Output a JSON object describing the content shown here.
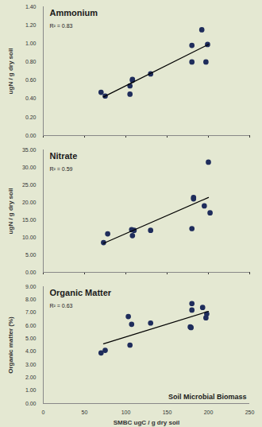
{
  "chart_data": [
    {
      "type": "scatter",
      "title": "Ammonium",
      "annotations": [
        "R² = 0.83"
      ],
      "y_label": "ugN / g dry soil",
      "xlim": [
        0,
        250
      ],
      "xticks": [
        0,
        50,
        100,
        150,
        200,
        250
      ],
      "ylim": [
        0,
        1.4
      ],
      "yticks": [
        {
          "value": 0,
          "label": "0.00"
        },
        {
          "value": 0.2,
          "label": "0.20"
        },
        {
          "value": 0.4,
          "label": "0.40"
        },
        {
          "value": 0.6,
          "label": "0.60"
        },
        {
          "value": 0.8,
          "label": "0.80"
        },
        {
          "value": 1.0,
          "label": "1.00"
        },
        {
          "value": 1.2,
          "label": "1.20"
        },
        {
          "value": 1.4,
          "label": "1.40"
        }
      ],
      "tick_labels": "y",
      "series": [
        {
          "type": "scatter",
          "color": "#1f2d5c",
          "marker": "circle",
          "x": [
            70,
            75,
            105,
            105,
            108,
            108,
            130,
            180,
            180,
            192,
            197,
            199
          ],
          "values": [
            0.47,
            0.43,
            0.54,
            0.45,
            0.6,
            0.61,
            0.67,
            0.8,
            0.98,
            1.15,
            0.8,
            0.99
          ]
        },
        {
          "type": "line",
          "color": "#000000",
          "line_style": "solid",
          "x": [
            73,
            200
          ],
          "values": [
            0.42,
            0.99
          ]
        }
      ]
    },
    {
      "type": "scatter",
      "title": "Nitrate",
      "annotations": [
        "R² = 0.59"
      ],
      "y_label": "ugN / g dry soil",
      "xlim": [
        0,
        250
      ],
      "xticks": [
        0,
        50,
        100,
        150,
        200,
        250
      ],
      "ylim": [
        0,
        35
      ],
      "yticks": [
        {
          "value": 0,
          "label": "0.00"
        },
        {
          "value": 5,
          "label": "5.00"
        },
        {
          "value": 10,
          "label": "10.00"
        },
        {
          "value": 15,
          "label": "15.00"
        },
        {
          "value": 20,
          "label": "20.00"
        },
        {
          "value": 25,
          "label": "25.00"
        },
        {
          "value": 30,
          "label": "30.00"
        },
        {
          "value": 35,
          "label": "35.00"
        }
      ],
      "tick_labels": "y",
      "series": [
        {
          "type": "scatter",
          "color": "#1f2d5c",
          "marker": "circle",
          "x": [
            73,
            78,
            107,
            108,
            110,
            130,
            180,
            182,
            182,
            195,
            200,
            202
          ],
          "values": [
            8.5,
            11.0,
            12.2,
            10.5,
            12.0,
            12.0,
            12.5,
            21.0,
            21.4,
            19.0,
            31.5,
            17.0
          ]
        },
        {
          "type": "line",
          "color": "#000000",
          "line_style": "solid",
          "x": [
            73,
            200
          ],
          "values": [
            8.3,
            21.4
          ]
        }
      ]
    },
    {
      "type": "scatter",
      "title": "Organic Matter",
      "annotations": [
        "R² = 0.63",
        "Soil Microbial Biomass"
      ],
      "x_label": "SMBC ugC / g dry soil",
      "y_label": "Organic matter (%)",
      "xlim": [
        0,
        250
      ],
      "xticks": [
        0,
        50,
        100,
        150,
        200,
        250
      ],
      "ylim": [
        0,
        9
      ],
      "yticks": [
        {
          "value": 0,
          "label": "0.00"
        },
        {
          "value": 1,
          "label": "1.00"
        },
        {
          "value": 2,
          "label": "2.00"
        },
        {
          "value": 3,
          "label": "3.00"
        },
        {
          "value": 4,
          "label": "4.00"
        },
        {
          "value": 5,
          "label": "5.00"
        },
        {
          "value": 6,
          "label": "6.00"
        },
        {
          "value": 7,
          "label": "7.00"
        },
        {
          "value": 8,
          "label": "8.00"
        },
        {
          "value": 9,
          "label": "9.00"
        }
      ],
      "series": [
        {
          "type": "scatter",
          "color": "#1f2d5c",
          "marker": "circle",
          "x": [
            70,
            75,
            103,
            105,
            107,
            130,
            178,
            179,
            180,
            180,
            193,
            197,
            198
          ],
          "values": [
            3.9,
            4.1,
            6.7,
            4.5,
            6.1,
            6.2,
            5.9,
            5.85,
            7.7,
            7.2,
            7.4,
            6.6,
            6.9
          ]
        },
        {
          "type": "line",
          "color": "#000000",
          "line_style": "solid",
          "x": [
            73,
            200
          ],
          "values": [
            4.6,
            7.1
          ]
        }
      ]
    }
  ]
}
